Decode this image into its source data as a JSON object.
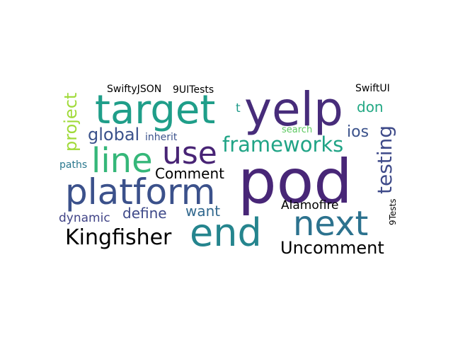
{
  "words": [
    {
      "id": "pod",
      "text": "pod",
      "color": "#482677"
    },
    {
      "id": "yelp",
      "text": "yelp",
      "color": "#472c7a"
    },
    {
      "id": "target",
      "text": "target",
      "color": "#1f9e89"
    },
    {
      "id": "platform",
      "text": "platform",
      "color": "#3b518b"
    },
    {
      "id": "end",
      "text": "end",
      "color": "#25858e"
    },
    {
      "id": "next",
      "text": "next",
      "color": "#2c728e"
    },
    {
      "id": "line",
      "text": "line",
      "color": "#35b779"
    },
    {
      "id": "use",
      "text": "use",
      "color": "#482475"
    },
    {
      "id": "frameworks",
      "text": "frameworks",
      "color": "#20a486"
    },
    {
      "id": "testing",
      "text": "testing",
      "color": "#3e4a89"
    },
    {
      "id": "kingfisher",
      "text": "Kingfisher",
      "color": "#21918c"
    },
    {
      "id": "uncomment",
      "text": "Uncomment",
      "color": "#29af7f"
    },
    {
      "id": "project",
      "text": "project",
      "color": "#a0da39"
    },
    {
      "id": "global",
      "text": "global",
      "color": "#3b528b"
    },
    {
      "id": "comment",
      "text": "Comment",
      "color": "#33638d"
    },
    {
      "id": "define",
      "text": "define",
      "color": "#3e4989"
    },
    {
      "id": "dynamic",
      "text": "dynamic",
      "color": "#414487"
    },
    {
      "id": "alamofire",
      "text": "Alamofire",
      "color": "#7ad151"
    },
    {
      "id": "want",
      "text": "want",
      "color": "#31688e"
    },
    {
      "id": "ios",
      "text": "ios",
      "color": "#3b528b"
    },
    {
      "id": "don",
      "text": "don",
      "color": "#22a884"
    },
    {
      "id": "swiftyjson",
      "text": "SwiftyJSON",
      "color": "#7ad151"
    },
    {
      "id": "9uitests",
      "text": "9UITests",
      "color": "#443983"
    },
    {
      "id": "swiftui",
      "text": "SwiftUI",
      "color": "#39568c"
    },
    {
      "id": "t",
      "text": "t",
      "color": "#1f9a8a"
    },
    {
      "id": "inherit",
      "text": "inherit",
      "color": "#3b528b"
    },
    {
      "id": "search",
      "text": "search",
      "color": "#5ec962"
    },
    {
      "id": "paths",
      "text": "paths",
      "color": "#2a788e"
    },
    {
      "id": "9tests",
      "text": "9Tests",
      "color": "#46327e"
    }
  ]
}
